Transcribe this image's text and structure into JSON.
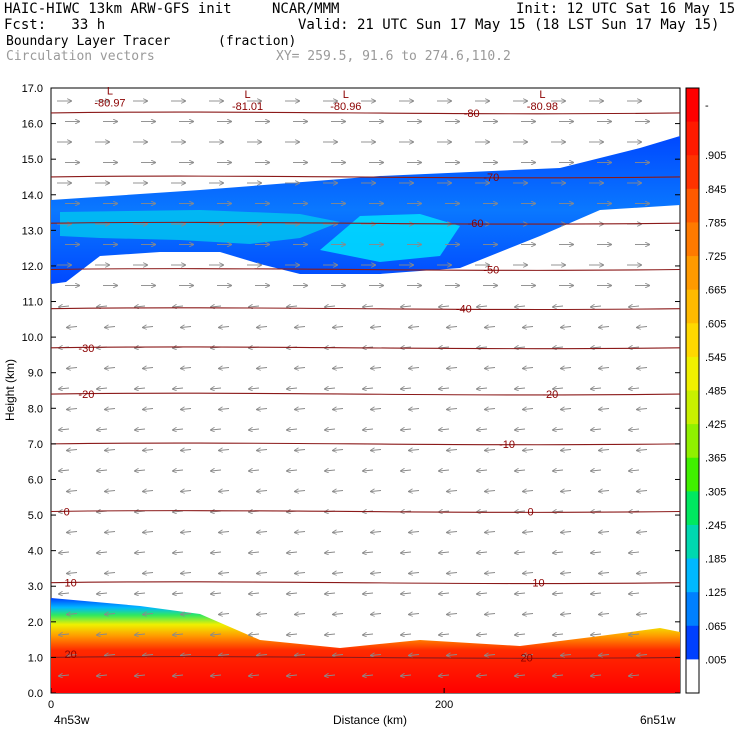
{
  "header": {
    "line1_left": "HAIC-HIWC 13km ARW-GFS init",
    "line1_mid": "NCAR/MMM",
    "line1_right": "Init: 12 UTC Sat 16 May 15",
    "line2_left": "Fcst:   33 h",
    "line2_right": "Valid: 21 UTC Sun 17 May 15 (18 LST Sun 17 May 15)",
    "line3_left": "Boundary Layer Tracer",
    "line3_mid": "(fraction)",
    "line4_left": "Circulation vectors",
    "line4_mid": "XY= 259.5, 91.6 to 274.6,110.2"
  },
  "chart_data": {
    "type": "heatmap",
    "title": "Boundary Layer Tracer (fraction)",
    "xlabel": "Distance (km)",
    "ylabel": "Height (km)",
    "xlim": [
      0,
      320
    ],
    "ylim": [
      0,
      17
    ],
    "x_tick_labels": [
      {
        "x": 0,
        "label": "0"
      },
      {
        "x": 200,
        "label": "200"
      }
    ],
    "x_end_labels": {
      "left": "4n53w",
      "right": "6n51w"
    },
    "y_ticks": [
      0.0,
      1.0,
      2.0,
      3.0,
      4.0,
      5.0,
      6.0,
      7.0,
      8.0,
      9.0,
      10.0,
      11.0,
      12.0,
      13.0,
      14.0,
      15.0,
      16.0,
      17.0
    ],
    "y_tick_labels": [
      "0.0",
      "1.0",
      "2.0",
      "3.0",
      "4.0",
      "5.0",
      "6.0",
      "7.0",
      "8.0",
      "9.0",
      "10.0",
      "11.0",
      "12.0",
      "13.0",
      "14.0",
      "15.0",
      "16.0",
      "17.0"
    ],
    "colorbar": {
      "labels": [
        "-",
        ".905",
        ".845",
        ".785",
        ".725",
        ".665",
        ".605",
        ".545",
        ".485",
        ".425",
        ".365",
        ".305",
        ".245",
        ".185",
        ".125",
        ".065",
        ".005"
      ],
      "colors": [
        "#ff0000",
        "#ff1a00",
        "#ff3300",
        "#ff5a00",
        "#ff7a00",
        "#ff9a00",
        "#ffba00",
        "#ffd800",
        "#f0f000",
        "#c8f000",
        "#90f000",
        "#40f000",
        "#00e860",
        "#00d8b0",
        "#00b8ff",
        "#0080ff",
        "#0040ff",
        "#ffffff"
      ]
    },
    "temperature_contours": [
      {
        "label": "-80",
        "height_km": 16.3
      },
      {
        "label": "-70",
        "height_km": 14.5
      },
      {
        "label": "-60",
        "height_km": 13.2
      },
      {
        "label": "-50",
        "height_km": 11.9
      },
      {
        "label": "-40",
        "height_km": 10.8
      },
      {
        "label": "-30",
        "height_km": 9.7
      },
      {
        "label": "-20",
        "height_km": 8.4
      },
      {
        "label": "-10",
        "height_km": 7.0
      },
      {
        "label": "0",
        "height_km": 5.1
      },
      {
        "label": "10",
        "height_km": 3.1
      },
      {
        "label": "20",
        "height_km": 1.0
      }
    ],
    "contour_label_positions": [
      {
        "label": "-80",
        "x_km": 214,
        "height_km": 16.3
      },
      {
        "label": "-70",
        "x_km": 224,
        "height_km": 14.5
      },
      {
        "label": "-60",
        "x_km": 216,
        "height_km": 13.2
      },
      {
        "label": "-50",
        "x_km": 224,
        "height_km": 11.9
      },
      {
        "label": "-40",
        "x_km": 210,
        "height_km": 10.8
      },
      {
        "label": "-30",
        "x_km": 18,
        "height_km": 9.7
      },
      {
        "label": "-20",
        "x_km": 18,
        "height_km": 8.4
      },
      {
        "label": "-20",
        "x_km": 254,
        "height_km": 8.4
      },
      {
        "label": "-10",
        "x_km": 232,
        "height_km": 7.0
      },
      {
        "label": "0",
        "x_km": 8,
        "height_km": 5.1
      },
      {
        "label": "0",
        "x_km": 244,
        "height_km": 5.1
      },
      {
        "label": "10",
        "x_km": 10,
        "height_km": 3.1
      },
      {
        "label": "10",
        "x_km": 248,
        "height_km": 3.1
      },
      {
        "label": "20",
        "x_km": 10,
        "height_km": 1.1
      },
      {
        "label": "20",
        "x_km": 242,
        "height_km": 1.0
      }
    ],
    "low_markers": [
      {
        "symbol": "L",
        "value": "-80.97",
        "x_km": 30,
        "height_km": 16.7
      },
      {
        "symbol": "L",
        "value": "-81.01",
        "x_km": 100,
        "height_km": 16.6
      },
      {
        "symbol": "L",
        "value": "-80.96",
        "x_km": 150,
        "height_km": 16.6
      },
      {
        "symbol": "L",
        "value": "-80.98",
        "x_km": 250,
        "height_km": 16.6
      }
    ]
  }
}
